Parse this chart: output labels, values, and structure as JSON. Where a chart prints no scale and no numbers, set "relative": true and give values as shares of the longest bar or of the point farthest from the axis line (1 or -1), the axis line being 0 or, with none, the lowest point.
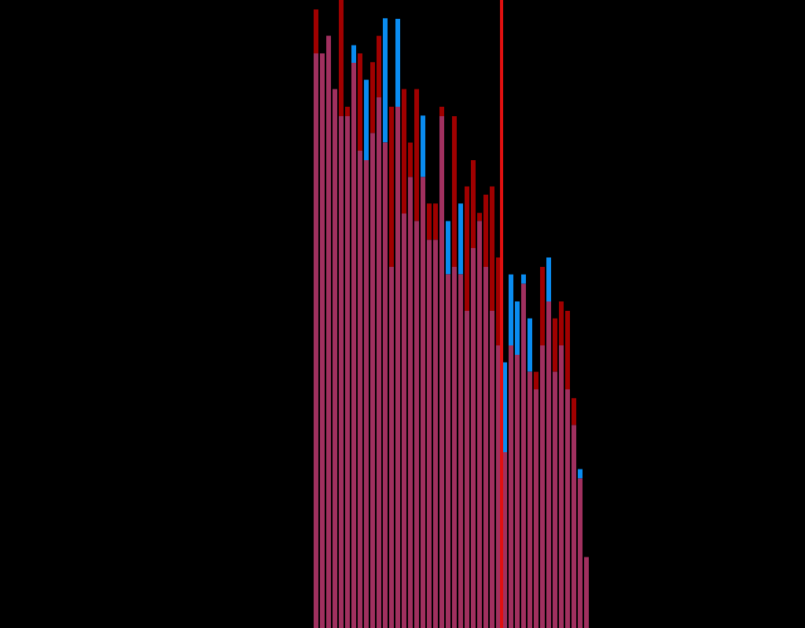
{
  "chart_data": {
    "type": "bar",
    "stacked": true,
    "relative": true,
    "grid": false,
    "legend": false,
    "categories": [
      null,
      null,
      null,
      null,
      null,
      null,
      null,
      null,
      null,
      null,
      null,
      null,
      null,
      null,
      null,
      null,
      null,
      null,
      null,
      null,
      null,
      null,
      null,
      null,
      null,
      null,
      null,
      null,
      null,
      null,
      null,
      null,
      null,
      null,
      null,
      null,
      null,
      null,
      null,
      null,
      null,
      null,
      null,
      null
    ],
    "series": [
      {
        "color": "#a0305f",
        "values": [
          0.915,
          0.915,
          0.943,
          0.858,
          0.815,
          0.815,
          0.9,
          0.76,
          0.745,
          0.788,
          0.845,
          0.773,
          0.575,
          0.83,
          0.66,
          0.718,
          0.648,
          0.718,
          0.618,
          0.618,
          0.815,
          0.563,
          0.575,
          0.563,
          0.505,
          0.605,
          0.648,
          0.575,
          0.505,
          0.45,
          0.28,
          0.45,
          0.435,
          0.548,
          0.408,
          0.38,
          0.45,
          0.52,
          0.408,
          0.45,
          0.38,
          0.323,
          0.238,
          0.113
        ]
      },
      {
        "colors": [
          "#a00000",
          "#a00000",
          "#a00000",
          "#a00000",
          "#a00000",
          "#a00000",
          "#0a8cf0",
          "#a00000",
          "#0a8cf0",
          "#a00000",
          "#a00000",
          "#0a8cf0",
          "#a00000",
          "#0a8cf0",
          "#a00000",
          "#a00000",
          "#a00000",
          "#0a8cf0",
          "#a00000",
          "#a00000",
          "#a00000",
          "#0a8cf0",
          "#a00000",
          "#0a8cf0",
          "#a00000",
          "#a00000",
          "#a00000",
          "#a00000",
          "#a00000",
          "#a00000",
          "#0a8cf0",
          "#0a8cf0",
          "#0a8cf0",
          "#0a8cf0",
          "#0a8cf0",
          "#a00000",
          "#a00000",
          "#0a8cf0",
          "#a00000",
          "#a00000",
          "#a00000",
          "#a00000",
          "#0a8cf0",
          "#a00000"
        ],
        "values": [
          0.07,
          0,
          0,
          0,
          0.185,
          0.015,
          0.028,
          0.155,
          0.128,
          0.113,
          0.098,
          0.198,
          0.255,
          0.14,
          0.198,
          0.055,
          0.21,
          0.098,
          0.058,
          0.058,
          0.015,
          0.085,
          0.24,
          0.113,
          0.198,
          0.14,
          0.013,
          0.115,
          0.198,
          0.14,
          0.143,
          0.113,
          0.085,
          0.015,
          0.085,
          0.028,
          0.125,
          0.07,
          0.085,
          0.07,
          0.125,
          0.043,
          0.015,
          0
        ]
      }
    ]
  }
}
